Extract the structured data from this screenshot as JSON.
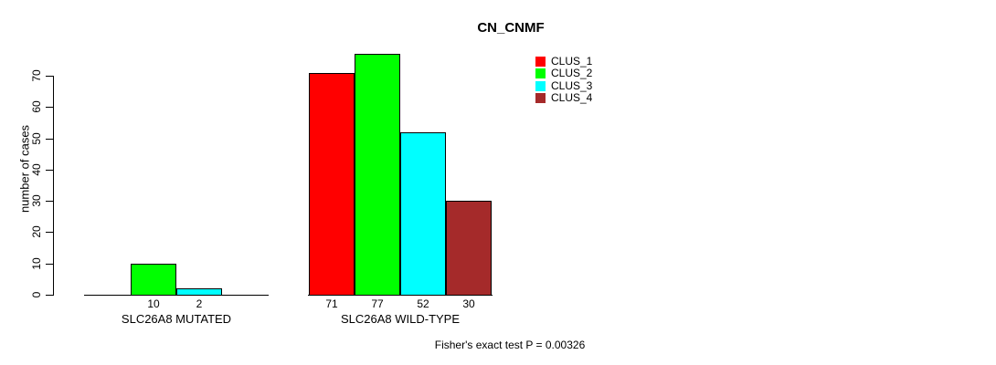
{
  "title": "CN_CNMF",
  "y_axis": {
    "label": "number of cases",
    "ticks": [
      0,
      10,
      20,
      30,
      40,
      50,
      60,
      70
    ]
  },
  "legend": {
    "entries": [
      {
        "label": "CLUS_1",
        "color": "#FF0000"
      },
      {
        "label": "CLUS_2",
        "color": "#00FF00"
      },
      {
        "label": "CLUS_3",
        "color": "#00FFFF"
      },
      {
        "label": "CLUS_4",
        "color": "#A52A2A"
      }
    ]
  },
  "footer": "Fisher's exact test P = 0.00326",
  "chart_data": {
    "type": "bar",
    "title": "CN_CNMF",
    "xlabel": "",
    "ylabel": "number of cases",
    "ylim": [
      0,
      77
    ],
    "yticks": [
      0,
      10,
      20,
      30,
      40,
      50,
      60,
      70
    ],
    "grid": false,
    "legend_position": "top-right",
    "categories": [
      "SLC26A8 MUTATED",
      "SLC26A8 WILD-TYPE"
    ],
    "series": [
      {
        "name": "CLUS_1",
        "color": "#FF0000",
        "values": [
          0,
          71
        ]
      },
      {
        "name": "CLUS_2",
        "color": "#00FF00",
        "values": [
          10,
          77
        ]
      },
      {
        "name": "CLUS_3",
        "color": "#00FFFF",
        "values": [
          2,
          52
        ]
      },
      {
        "name": "CLUS_4",
        "color": "#A52A2A",
        "values": [
          0,
          30
        ]
      }
    ],
    "bar_value_labels": [
      [
        "",
        "10",
        "2",
        ""
      ],
      [
        "71",
        "77",
        "52",
        "30"
      ]
    ],
    "annotation": "Fisher's exact test P = 0.00326"
  }
}
